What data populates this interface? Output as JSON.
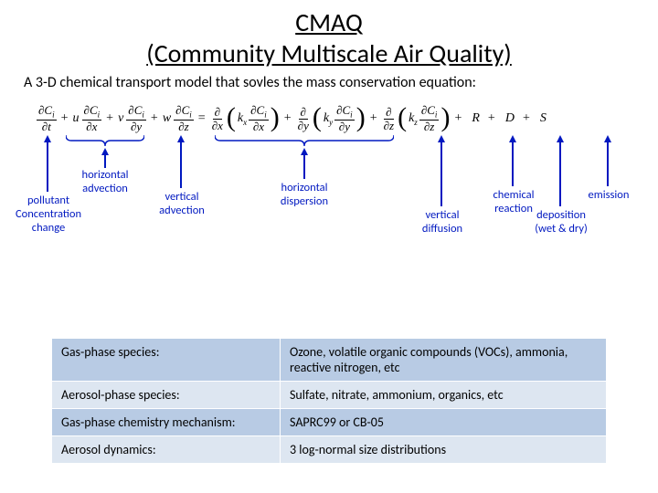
{
  "colors": {
    "annotation": "#0018c0",
    "table_band_dark": "#b8cbe4",
    "table_band_light": "#dde6f1",
    "background": "#ffffff",
    "text": "#000000"
  },
  "title": {
    "line1": "CMAQ",
    "line2": "(Community Multiscale Air Quality)",
    "fontsize": 28
  },
  "subtitle": {
    "text": "A 3-D chemical transport model that sovles the mass conservation equation:",
    "fontsize": 16
  },
  "annotations": {
    "pollutant": "pollutant\nConcentration\nchange",
    "h_advection": "horizontal\nadvection",
    "v_advection": "vertical\nadvection",
    "h_dispersion": "horizontal\ndispersion",
    "v_diffusion": "vertical\ndiffusion",
    "chem": "chemical\nreaction",
    "deposition": "deposition\n(wet & dry)",
    "emission": "emission"
  },
  "table": {
    "rows": [
      {
        "c1": "Gas-phase species:",
        "c2": "Ozone, volatile organic compounds (VOCs), ammonia, reactive nitrogen, etc"
      },
      {
        "c1": "Aerosol-phase species:",
        "c2": "Sulfate, nitrate, ammonium, organics, etc"
      },
      {
        "c1": "Gas-phase chemistry mechanism:",
        "c2": "SAPRC99 or CB-05"
      },
      {
        "c1": "Aerosol dynamics:",
        "c2": "3 log-normal size distributions"
      }
    ]
  }
}
